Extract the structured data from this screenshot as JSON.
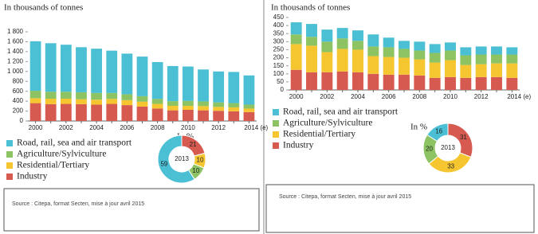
{
  "chart_data": [
    {
      "type": "stacked-bar",
      "y_label": "In thousands of tonnes",
      "categories": [
        "2000",
        null,
        "2002",
        null,
        "2004",
        null,
        "2006",
        null,
        "2008",
        null,
        "2010",
        null,
        "2012",
        null,
        "2014 (e)"
      ],
      "series": [
        {
          "name": "Industry",
          "color": "#d65a4f",
          "values": [
            360,
            340,
            345,
            340,
            330,
            345,
            320,
            290,
            250,
            215,
            225,
            215,
            205,
            195,
            180
          ]
        },
        {
          "name": "Residential/Tertiary",
          "color": "#f6c631",
          "values": [
            100,
            110,
            105,
            100,
            100,
            100,
            100,
            100,
            95,
            90,
            80,
            85,
            80,
            80,
            70
          ]
        },
        {
          "name": "Agriculture/Sylviculture",
          "color": "#8dc363",
          "values": [
            150,
            140,
            140,
            140,
            135,
            120,
            120,
            110,
            100,
            95,
            100,
            95,
            90,
            85,
            80
          ]
        },
        {
          "name": "Road, rail, sea and air transport",
          "color": "#4bbfd4",
          "values": [
            1000,
            980,
            950,
            910,
            895,
            855,
            820,
            800,
            745,
            710,
            695,
            645,
            625,
            630,
            590
          ]
        }
      ],
      "ylim": [
        0,
        1800
      ],
      "yticks": [
        0,
        200,
        400,
        600,
        800,
        {
          "value": 1000,
          "label": "1 000"
        },
        {
          "value": 1200,
          "label": "1 200"
        },
        {
          "value": 1400,
          "label": "1 400"
        },
        {
          "value": 1600,
          "label": "1 600"
        },
        {
          "value": 1800,
          "label": "1 800"
        }
      ],
      "source": "Source : Citepa, format Secten, mise à jour avril 2015"
    },
    {
      "type": "donut",
      "title": "In %",
      "center_label": "2013",
      "values": [
        59,
        10,
        10,
        21
      ],
      "colors": [
        "#4bbfd4",
        "#8dc363",
        "#f6c631",
        "#d65a4f"
      ]
    },
    {
      "type": "stacked-bar",
      "y_label": "In thousands of tonnes",
      "categories": [
        "2000",
        null,
        "2002",
        null,
        "2004",
        null,
        "2006",
        null,
        "2008",
        null,
        "2010",
        null,
        "2012",
        null,
        "2014 (e)"
      ],
      "series": [
        {
          "name": "Industry",
          "color": "#d65a4f",
          "values": [
            125,
            110,
            110,
            115,
            110,
            100,
            95,
            95,
            90,
            75,
            80,
            75,
            80,
            80,
            75
          ]
        },
        {
          "name": "Residential/Tertiary",
          "color": "#f6c631",
          "values": [
            160,
            165,
            125,
            140,
            140,
            110,
            110,
            105,
            100,
            95,
            105,
            80,
            80,
            85,
            90
          ]
        },
        {
          "name": "Agriculture/Sylviculture",
          "color": "#8dc363",
          "values": [
            60,
            55,
            65,
            65,
            55,
            60,
            60,
            55,
            55,
            60,
            60,
            60,
            60,
            55,
            55
          ]
        },
        {
          "name": "Road, rail, sea and air transport",
          "color": "#4bbfd4",
          "values": [
            75,
            80,
            75,
            65,
            65,
            75,
            60,
            50,
            55,
            55,
            50,
            50,
            50,
            50,
            45
          ]
        }
      ],
      "ylim": [
        0,
        450
      ],
      "yticks": [
        0,
        50,
        100,
        150,
        200,
        250,
        300,
        350,
        400,
        450
      ],
      "source": "Source : Citepa, format Secten, mise à jour avril 2015"
    },
    {
      "type": "donut",
      "title": "In %",
      "center_label": "2013",
      "values": [
        16,
        20,
        33,
        31
      ],
      "colors": [
        "#4bbfd4",
        "#8dc363",
        "#f6c631",
        "#d65a4f"
      ]
    }
  ]
}
